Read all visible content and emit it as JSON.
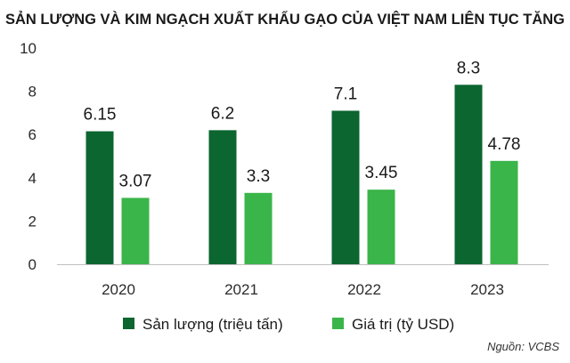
{
  "colors": {
    "san_luong": "#0b6630",
    "gia_tri": "#3ab54a",
    "axis": "#bfbfbf",
    "title": "#1a1a1a"
  },
  "chart_data": {
    "type": "bar",
    "title": "SẢN LƯỢNG VÀ KIM NGẠCH XUẤT KHẨU GẠO CỦA VIỆT NAM LIÊN TỤC TĂNG",
    "categories": [
      "2020",
      "2021",
      "2022",
      "2023"
    ],
    "series": [
      {
        "name": "Sản lượng (triệu tấn)",
        "values": [
          6.15,
          6.2,
          7.1,
          8.3
        ],
        "labels": [
          "6.15",
          "6.2",
          "7.1",
          "8.3"
        ]
      },
      {
        "name": "Giá trị (tỷ USD)",
        "values": [
          3.07,
          3.3,
          3.45,
          4.78
        ],
        "labels": [
          "3.07",
          "3.3",
          "3.45",
          "4.78"
        ]
      }
    ],
    "yticks": [
      "0",
      "2",
      "4",
      "6",
      "8",
      "10"
    ],
    "ylim": [
      0,
      10
    ],
    "xlabel": "",
    "ylabel": "",
    "grid": false,
    "legend_position": "bottom-center",
    "source": "Nguồn: VCBS"
  }
}
